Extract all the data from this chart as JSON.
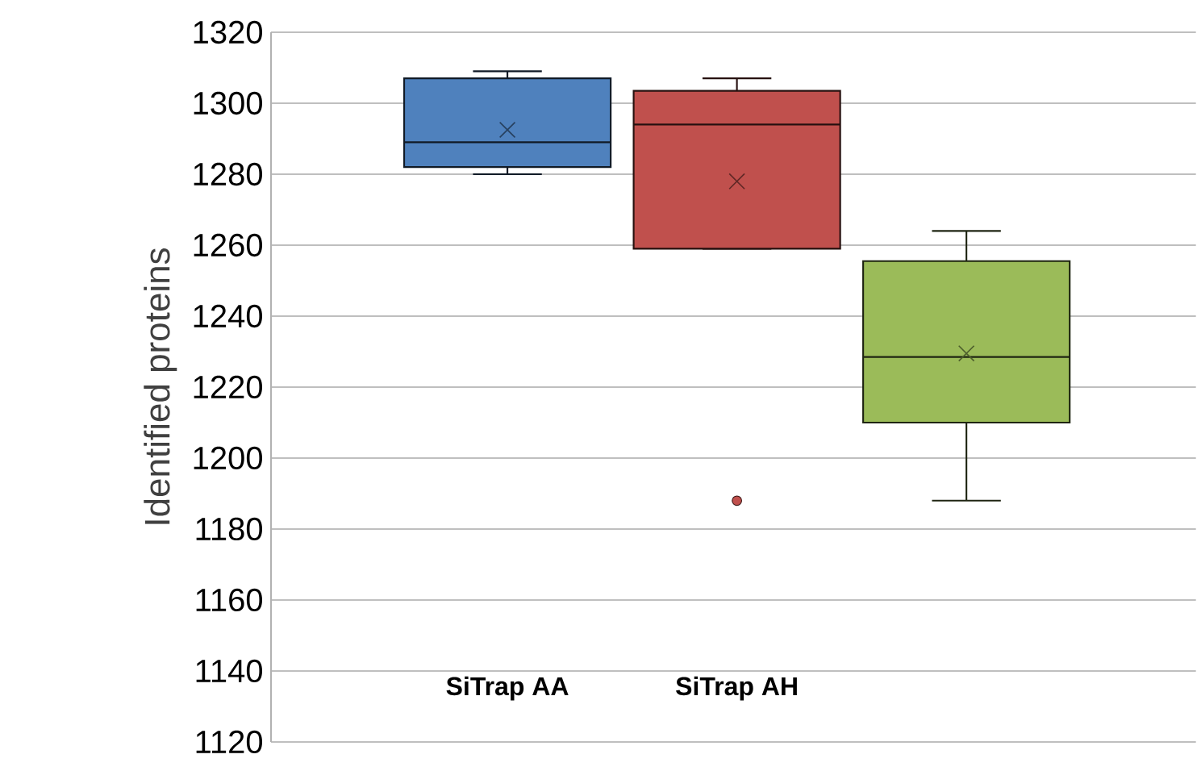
{
  "chart_data": {
    "type": "box",
    "ylabel": "Identified proteins",
    "categories": [
      "SiTrap AA",
      "SiTrap AH",
      null
    ],
    "colors": [
      "#4f81bd",
      "#c0504d",
      "#9bbb59"
    ],
    "boxes": [
      {
        "low": 1280,
        "q1": 1282,
        "median": 1289,
        "q3": 1307,
        "high": 1309,
        "mean": 1292.5
      },
      {
        "low": 1259,
        "q1": 1259,
        "median": 1294,
        "q3": 1303.5,
        "high": 1307,
        "mean": 1278,
        "outliers": [
          1188
        ]
      },
      {
        "low": 1188,
        "q1": 1210,
        "median": 1228.5,
        "q3": 1255.5,
        "high": 1264,
        "mean": 1229.5
      }
    ],
    "ylim": [
      1120,
      1320
    ],
    "yticks": [
      1120,
      1140,
      1160,
      1180,
      1200,
      1220,
      1240,
      1260,
      1280,
      1300,
      1320
    ],
    "grid": "y",
    "marker": "cross"
  }
}
